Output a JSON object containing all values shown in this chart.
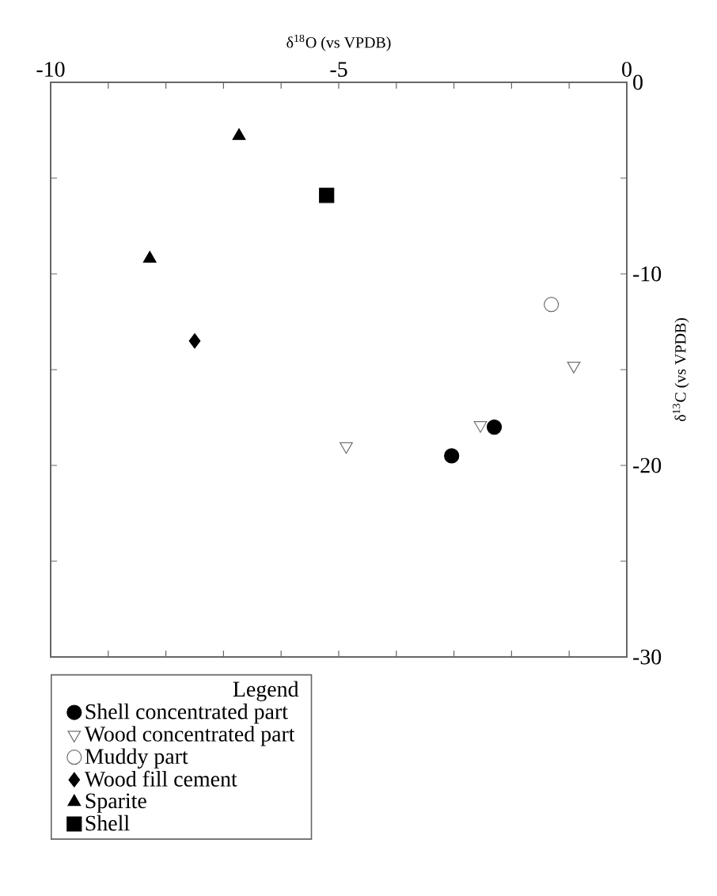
{
  "chart_data": {
    "type": "scatter",
    "xlabel": "δ$^{18}$O (vs VPDB)",
    "ylabel": "δ$^{13}$C (vs VPDB)",
    "xlim": [
      -10,
      0
    ],
    "ylim": [
      -30,
      0
    ],
    "xticks": [
      -10,
      {
        "value": -9,
        "label": null
      },
      {
        "value": -8,
        "label": null
      },
      {
        "value": -7,
        "label": null
      },
      {
        "value": -6,
        "label": null
      },
      -5,
      {
        "value": -4,
        "label": null
      },
      {
        "value": -3,
        "label": null
      },
      {
        "value": -2,
        "label": null
      },
      {
        "value": -1,
        "label": null
      },
      0
    ],
    "yticks": [
      -30,
      {
        "value": -25,
        "label": null
      },
      -20,
      {
        "value": -15,
        "label": null
      },
      -10,
      {
        "value": -5,
        "label": null
      },
      0
    ],
    "grid": false,
    "legend": "bottom left",
    "legend_title": "Legend",
    "series": [
      {
        "name": "Shell concentrated part",
        "color": "#000000",
        "marker": "circle",
        "x": [
          -3.04,
          -2.3
        ],
        "values": [
          -19.5,
          -18.0
        ]
      },
      {
        "name": "Wood concentrated part",
        "color": "#707070",
        "marker": "triangle-down-open",
        "x": [
          -4.87,
          -2.54,
          -0.92
        ],
        "values": [
          -19.0,
          -17.9,
          -14.8
        ]
      },
      {
        "name": "Muddy part",
        "color": "#707070",
        "marker": "circle-open",
        "x": [
          -1.31
        ],
        "values": [
          -11.6
        ]
      },
      {
        "name": "Wood fill cement",
        "color": "#000000",
        "marker": "diamond",
        "x": [
          -7.5
        ],
        "values": [
          -13.5
        ]
      },
      {
        "name": "Sparite",
        "color": "#000000",
        "marker": "triangle",
        "x": [
          -6.73,
          -8.28
        ],
        "values": [
          -2.8,
          -9.2
        ]
      },
      {
        "name": "Shell",
        "color": "#000000",
        "marker": "square",
        "x": [
          -5.21
        ],
        "values": [
          -5.9
        ]
      }
    ]
  }
}
